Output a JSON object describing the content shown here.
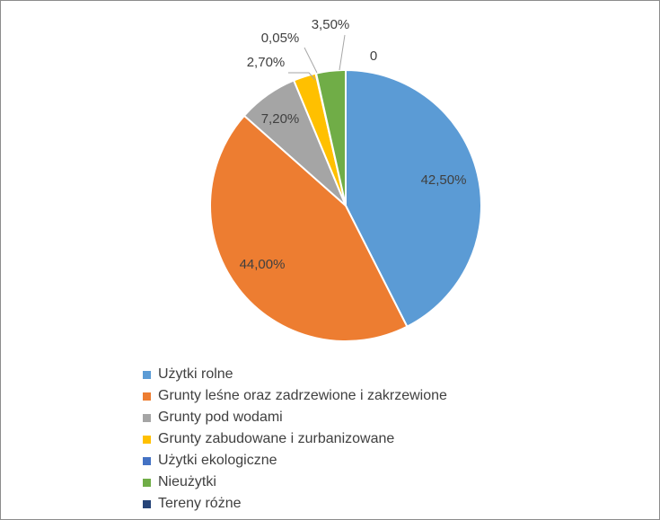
{
  "chart_data": {
    "type": "pie",
    "title": "",
    "legend_position": "bottom",
    "series": [
      {
        "name": "Użytki rolne",
        "value": 42.5,
        "label": "42,50%",
        "color": "#5b9bd5"
      },
      {
        "name": "Grunty leśne oraz zadrzewione i zakrzewione",
        "value": 44.0,
        "label": "44,00%",
        "color": "#ed7d31"
      },
      {
        "name": "Grunty pod wodami",
        "value": 7.2,
        "label": "7,20%",
        "color": "#a5a5a5"
      },
      {
        "name": "Grunty zabudowane i zurbanizowane",
        "value": 2.7,
        "label": "2,70%",
        "color": "#ffc000"
      },
      {
        "name": "Użytki ekologiczne",
        "value": 0.05,
        "label": "0,05%",
        "color": "#4472c4"
      },
      {
        "name": "Nieużytki",
        "value": 3.5,
        "label": "3,50%",
        "color": "#70ad47"
      },
      {
        "name": "Tereny różne",
        "value": 0,
        "label": "0",
        "color": "#264478"
      }
    ]
  }
}
